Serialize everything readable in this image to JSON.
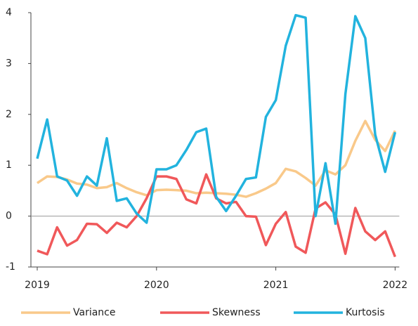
{
  "chart_data": {
    "type": "line",
    "categories": [
      "2019",
      null,
      null,
      null,
      null,
      null,
      null,
      null,
      null,
      null,
      null,
      null,
      "2020",
      null,
      null,
      null,
      null,
      null,
      null,
      null,
      null,
      null,
      null,
      null,
      "2021",
      null,
      null,
      null,
      null,
      null,
      null,
      null,
      null,
      null,
      null,
      null,
      "2022"
    ],
    "series": [
      {
        "name": "Variance",
        "color": "#f9c98a",
        "values": [
          0.65,
          0.78,
          0.77,
          0.72,
          0.64,
          0.62,
          0.55,
          0.57,
          0.65,
          0.55,
          0.47,
          0.41,
          0.51,
          0.52,
          0.51,
          0.5,
          0.45,
          0.46,
          0.45,
          0.44,
          0.42,
          0.38,
          0.45,
          0.54,
          0.65,
          0.93,
          0.88,
          0.75,
          0.6,
          0.9,
          0.82,
          1.0,
          1.48,
          1.87,
          1.5,
          1.28,
          1.68
        ]
      },
      {
        "name": "Skewness",
        "color": "#f0585a",
        "values": [
          -0.68,
          -0.75,
          -0.22,
          -0.58,
          -0.47,
          -0.15,
          -0.16,
          -0.33,
          -0.13,
          -0.22,
          0.0,
          0.35,
          0.78,
          0.78,
          0.73,
          0.33,
          0.25,
          0.82,
          0.35,
          0.25,
          0.28,
          0.0,
          -0.01,
          -0.57,
          -0.15,
          0.08,
          -0.6,
          -0.72,
          0.15,
          0.27,
          0.03,
          -0.74,
          0.16,
          -0.3,
          -0.47,
          -0.3,
          -0.8
        ]
      },
      {
        "name": "Kurtosis",
        "color": "#22b3de",
        "values": [
          1.13,
          1.9,
          0.78,
          0.7,
          0.4,
          0.78,
          0.6,
          1.53,
          0.3,
          0.35,
          0.05,
          -0.13,
          0.92,
          0.92,
          1.0,
          1.3,
          1.65,
          1.72,
          0.38,
          0.1,
          0.4,
          0.73,
          0.76,
          1.95,
          2.28,
          3.35,
          3.95,
          3.9,
          0.0,
          1.04,
          -0.15,
          2.4,
          3.93,
          3.5,
          1.6,
          0.87,
          1.65
        ]
      }
    ],
    "ylim": [
      -1,
      4
    ],
    "yticks": [
      -1,
      0,
      1,
      2,
      3,
      4
    ],
    "legend": "bottom"
  }
}
